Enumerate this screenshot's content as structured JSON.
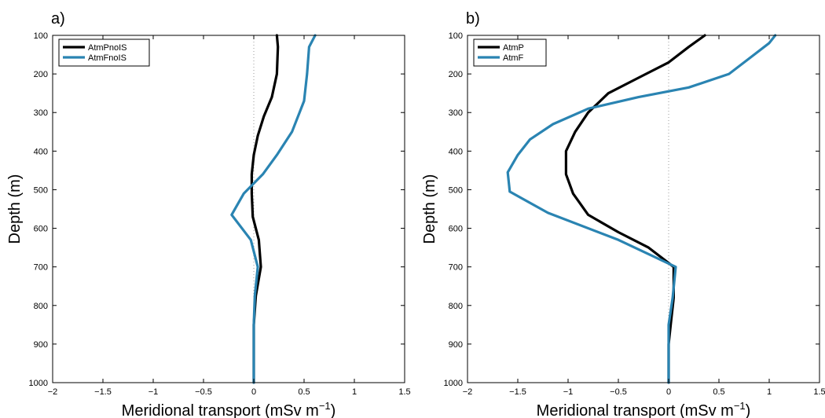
{
  "chart_data": [
    {
      "type": "line",
      "panel_label": "a)",
      "xlabel": "Meridional transport (mSv m",
      "xlabel_sup": "−1",
      "xlabel_end": ")",
      "ylabel": "Depth (m)",
      "xlim": [
        -2,
        1.5
      ],
      "ylim": [
        100,
        1000
      ],
      "y_reversed": true,
      "xticks": [
        -2,
        -1.5,
        -1,
        -0.5,
        0,
        0.5,
        1,
        1.5
      ],
      "xtick_labels": [
        "−2",
        "−1.5",
        "−1",
        "−0.5",
        "0",
        "0.5",
        "1",
        "1.5"
      ],
      "yticks": [
        100,
        200,
        300,
        400,
        500,
        600,
        700,
        800,
        900,
        1000
      ],
      "ytick_labels": [
        "100",
        "200",
        "300",
        "400",
        "500",
        "600",
        "700",
        "800",
        "900",
        "1000"
      ],
      "zero_line": true,
      "legend_position": "top-left",
      "series": [
        {
          "name": "AtmPnoIS",
          "color": "#000000",
          "x": [
            0.23,
            0.24,
            0.23,
            0.18,
            0.1,
            0.04,
            0.0,
            -0.02,
            -0.02,
            -0.01,
            0.05,
            0.07,
            0.02,
            0.0,
            0.0,
            0.0
          ],
          "y": [
            100,
            130,
            200,
            260,
            310,
            360,
            410,
            460,
            510,
            570,
            630,
            700,
            775,
            850,
            900,
            1000
          ]
        },
        {
          "name": "AtmFnoIS",
          "color": "#2a84b2",
          "x": [
            0.61,
            0.55,
            0.53,
            0.5,
            0.38,
            0.23,
            0.09,
            -0.1,
            -0.22,
            -0.03,
            0.04,
            0.01,
            0.0,
            0.0
          ],
          "y": [
            100,
            130,
            200,
            270,
            350,
            410,
            460,
            510,
            565,
            630,
            700,
            775,
            850,
            1000
          ]
        }
      ]
    },
    {
      "type": "line",
      "panel_label": "b)",
      "xlabel": "Meridional transport (mSv m",
      "xlabel_sup": "−1",
      "xlabel_end": ")",
      "ylabel": "Depth (m)",
      "xlim": [
        -2,
        1.5
      ],
      "ylim": [
        100,
        1000
      ],
      "y_reversed": true,
      "xticks": [
        -2,
        -1.5,
        -1,
        -0.5,
        0,
        0.5,
        1,
        1.5
      ],
      "xtick_labels": [
        "−2",
        "−1.5",
        "−1",
        "−0.5",
        "0",
        "0.5",
        "1",
        "1.5"
      ],
      "yticks": [
        100,
        200,
        300,
        400,
        500,
        600,
        700,
        800,
        900,
        1000
      ],
      "ytick_labels": [
        "100",
        "200",
        "300",
        "400",
        "500",
        "600",
        "700",
        "800",
        "900",
        "1000"
      ],
      "zero_line": true,
      "legend_position": "top-left",
      "series": [
        {
          "name": "AtmP",
          "color": "#000000",
          "x": [
            0.36,
            0.2,
            0.0,
            -0.3,
            -0.6,
            -0.8,
            -0.93,
            -1.02,
            -1.02,
            -0.95,
            -0.8,
            -0.5,
            -0.2,
            0.05,
            0.05,
            0.02,
            0.0,
            0.0
          ],
          "y": [
            100,
            130,
            170,
            210,
            250,
            300,
            350,
            400,
            460,
            510,
            565,
            610,
            650,
            700,
            780,
            850,
            900,
            1000
          ]
        },
        {
          "name": "AtmF",
          "color": "#2a84b2",
          "x": [
            1.06,
            1.0,
            0.8,
            0.6,
            0.2,
            -0.3,
            -0.8,
            -1.15,
            -1.38,
            -1.5,
            -1.6,
            -1.58,
            -1.2,
            -0.5,
            0.07,
            0.04,
            0.0,
            0.0
          ],
          "y": [
            100,
            120,
            160,
            200,
            235,
            260,
            290,
            330,
            370,
            410,
            455,
            505,
            560,
            630,
            700,
            780,
            850,
            1000
          ]
        }
      ]
    }
  ]
}
